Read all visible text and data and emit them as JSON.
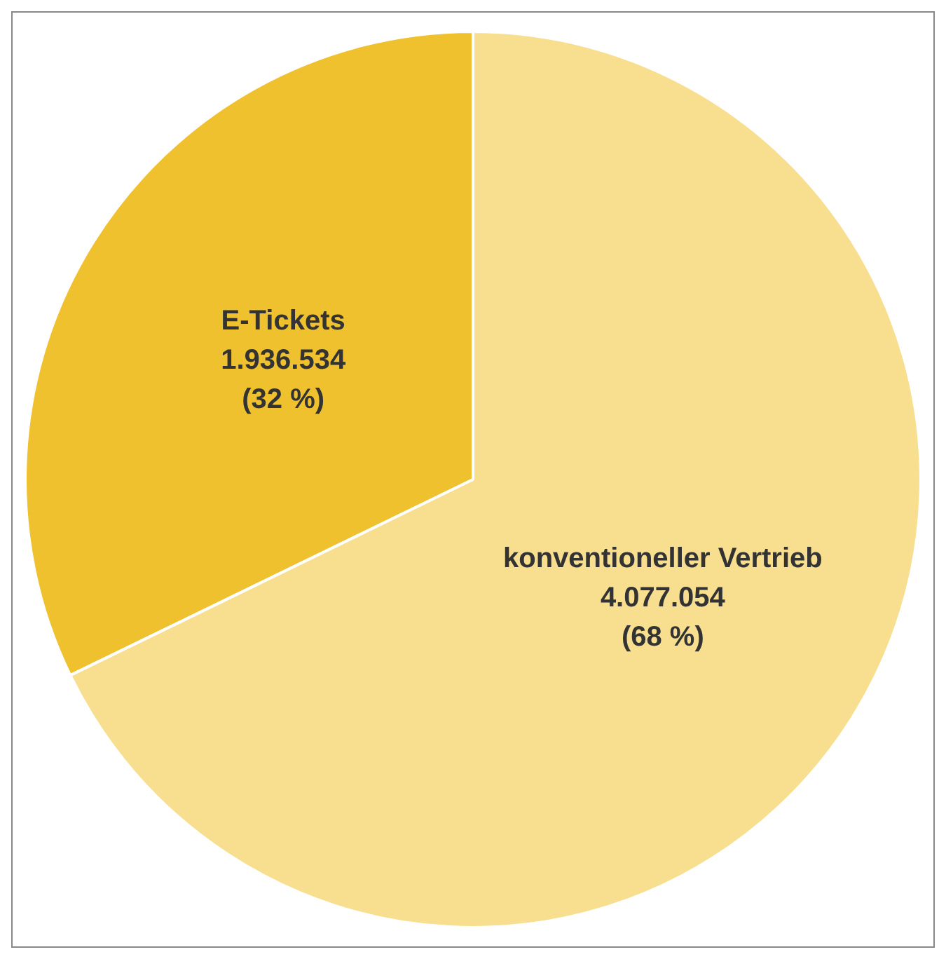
{
  "chart_data": {
    "type": "pie",
    "categories": [
      "E-Tickets",
      "konventioneller Vertrieb"
    ],
    "values": [
      1936534,
      4077054
    ],
    "colors": [
      "#efc12f",
      "#f8de8f"
    ],
    "value_labels": [
      "1.936.534\n(32 %)",
      "4.077.054\n(68 %)"
    ],
    "legend": false
  }
}
